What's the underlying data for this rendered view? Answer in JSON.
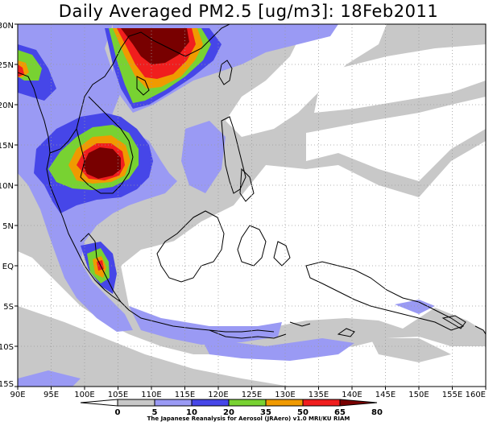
{
  "title": "Daily Averaged PM2.5 [ug/m3]: 18Feb2011",
  "credit": "The Japanese Reanalysis for Aerosol (JRAero) v1.0 MRI/KU RIAM",
  "map": {
    "lon_range": [
      90,
      160
    ],
    "lat_range": [
      -15,
      30
    ],
    "x_ticks": [
      "90E",
      "95E",
      "100E",
      "105E",
      "110E",
      "115E",
      "120E",
      "125E",
      "130E",
      "135E",
      "140E",
      "145E",
      "150E",
      "155E",
      "160E"
    ],
    "y_ticks": [
      "30N",
      "25N",
      "20N",
      "15N",
      "10N",
      "5N",
      "EQ",
      "5S",
      "10S",
      "15S"
    ]
  },
  "colorbar": {
    "levels": [
      "0",
      "5",
      "10",
      "20",
      "35",
      "50",
      "65",
      "80"
    ],
    "colors": [
      "#ffffff",
      "#c8c8c8",
      "#9a9af4",
      "#4646e8",
      "#78d232",
      "#f09a00",
      "#f01e1e",
      "#780000"
    ]
  }
}
